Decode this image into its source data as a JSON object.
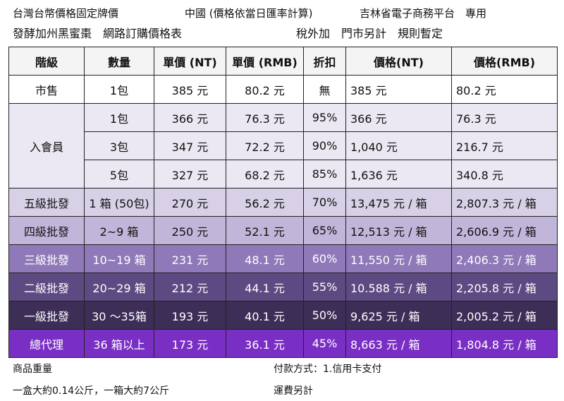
{
  "header": {
    "line1_left": "台灣台幣價格固定牌價",
    "line1_mid": "中國 (價格依當日匯率計算)",
    "line1_right": "吉林省電子商務平台　專用",
    "line2_left": "發酵加州黑蜜棗　網路訂購價格表",
    "line2_right": "稅外加　門市另計　規則暫定"
  },
  "table": {
    "columns": [
      "階級",
      "數量",
      "單價 (NT)",
      "單價 (RMB)",
      "折扣",
      "價格(NT)",
      "價格(RMB)"
    ],
    "rows": [
      {
        "tier": "市售",
        "qty": "1包",
        "unit_nt": "385 元",
        "unit_rmb": "80.2 元",
        "discount": "無",
        "total_nt": "385 元",
        "total_rmb": "80.2 元",
        "bg": "#ffffff",
        "fg": "#111111"
      },
      {
        "tier": "入會員",
        "qty": "1包",
        "unit_nt": "366 元",
        "unit_rmb": "76.3 元",
        "discount": "95%",
        "total_nt": "366 元",
        "total_rmb": "76.3 元",
        "bg": "#ece8f3",
        "fg": "#111111"
      },
      {
        "tier": "",
        "qty": "3包",
        "unit_nt": "347 元",
        "unit_rmb": "72.2 元",
        "discount": "90%",
        "total_nt": "1,040 元",
        "total_rmb": "216.7 元",
        "bg": "#ece8f3",
        "fg": "#111111"
      },
      {
        "tier": "",
        "qty": "5包",
        "unit_nt": "327 元",
        "unit_rmb": "68.2 元",
        "discount": "85%",
        "total_nt": "1,636 元",
        "total_rmb": "340.8 元",
        "bg": "#ece8f3",
        "fg": "#111111"
      },
      {
        "tier": "五級批發",
        "qty": "1 箱 (50包)",
        "unit_nt": "270 元",
        "unit_rmb": "56.2 元",
        "discount": "70%",
        "total_nt": "13,475 元 / 箱",
        "total_rmb": "2,807.3 元 / 箱",
        "bg": "#d7d0e6",
        "fg": "#111111"
      },
      {
        "tier": "四級批發",
        "qty": "2~9 箱",
        "unit_nt": "250 元",
        "unit_rmb": "52.1 元",
        "discount": "65%",
        "total_nt": "12,513 元 / 箱",
        "total_rmb": "2,606.9 元 / 箱",
        "bg": "#c1b6d9",
        "fg": "#111111"
      },
      {
        "tier": "三級批發",
        "qty": "10~19 箱",
        "unit_nt": "231 元",
        "unit_rmb": "48.1 元",
        "discount": "60%",
        "total_nt": "11,550 元 / 箱",
        "total_rmb": "2,406.3 元 / 箱",
        "bg": "#8f79b8",
        "fg": "#ffffff"
      },
      {
        "tier": "二級批發",
        "qty": "20~29 箱",
        "unit_nt": "212 元",
        "unit_rmb": "44.1 元",
        "discount": "55%",
        "total_nt": "10.588 元 / 箱",
        "total_rmb": "2,205.8 元 / 箱",
        "bg": "#5d4a82",
        "fg": "#ffffff"
      },
      {
        "tier": "一級批發",
        "qty": "30 ～35箱",
        "unit_nt": "193 元",
        "unit_rmb": "40.1 元",
        "discount": "50%",
        "total_nt": "9,625 元 / 箱",
        "total_rmb": "2,005.2 元 / 箱",
        "bg": "#3c2e57",
        "fg": "#ffffff"
      },
      {
        "tier": "總代理",
        "qty": "36 箱以上",
        "unit_nt": "173 元",
        "unit_rmb": "36.1 元",
        "discount": "45%",
        "total_nt": "8,663 元 / 箱",
        "total_rmb": "1,804.8 元 / 箱",
        "bg": "#7a2fc4",
        "fg": "#ffffff"
      }
    ]
  },
  "footer": {
    "weight_label": "商品重量",
    "weight_value": "一盒大約0.14公斤，一箱大約7公斤",
    "payment": "付款方式：1.信用卡支付",
    "shipping": "運費另計"
  }
}
